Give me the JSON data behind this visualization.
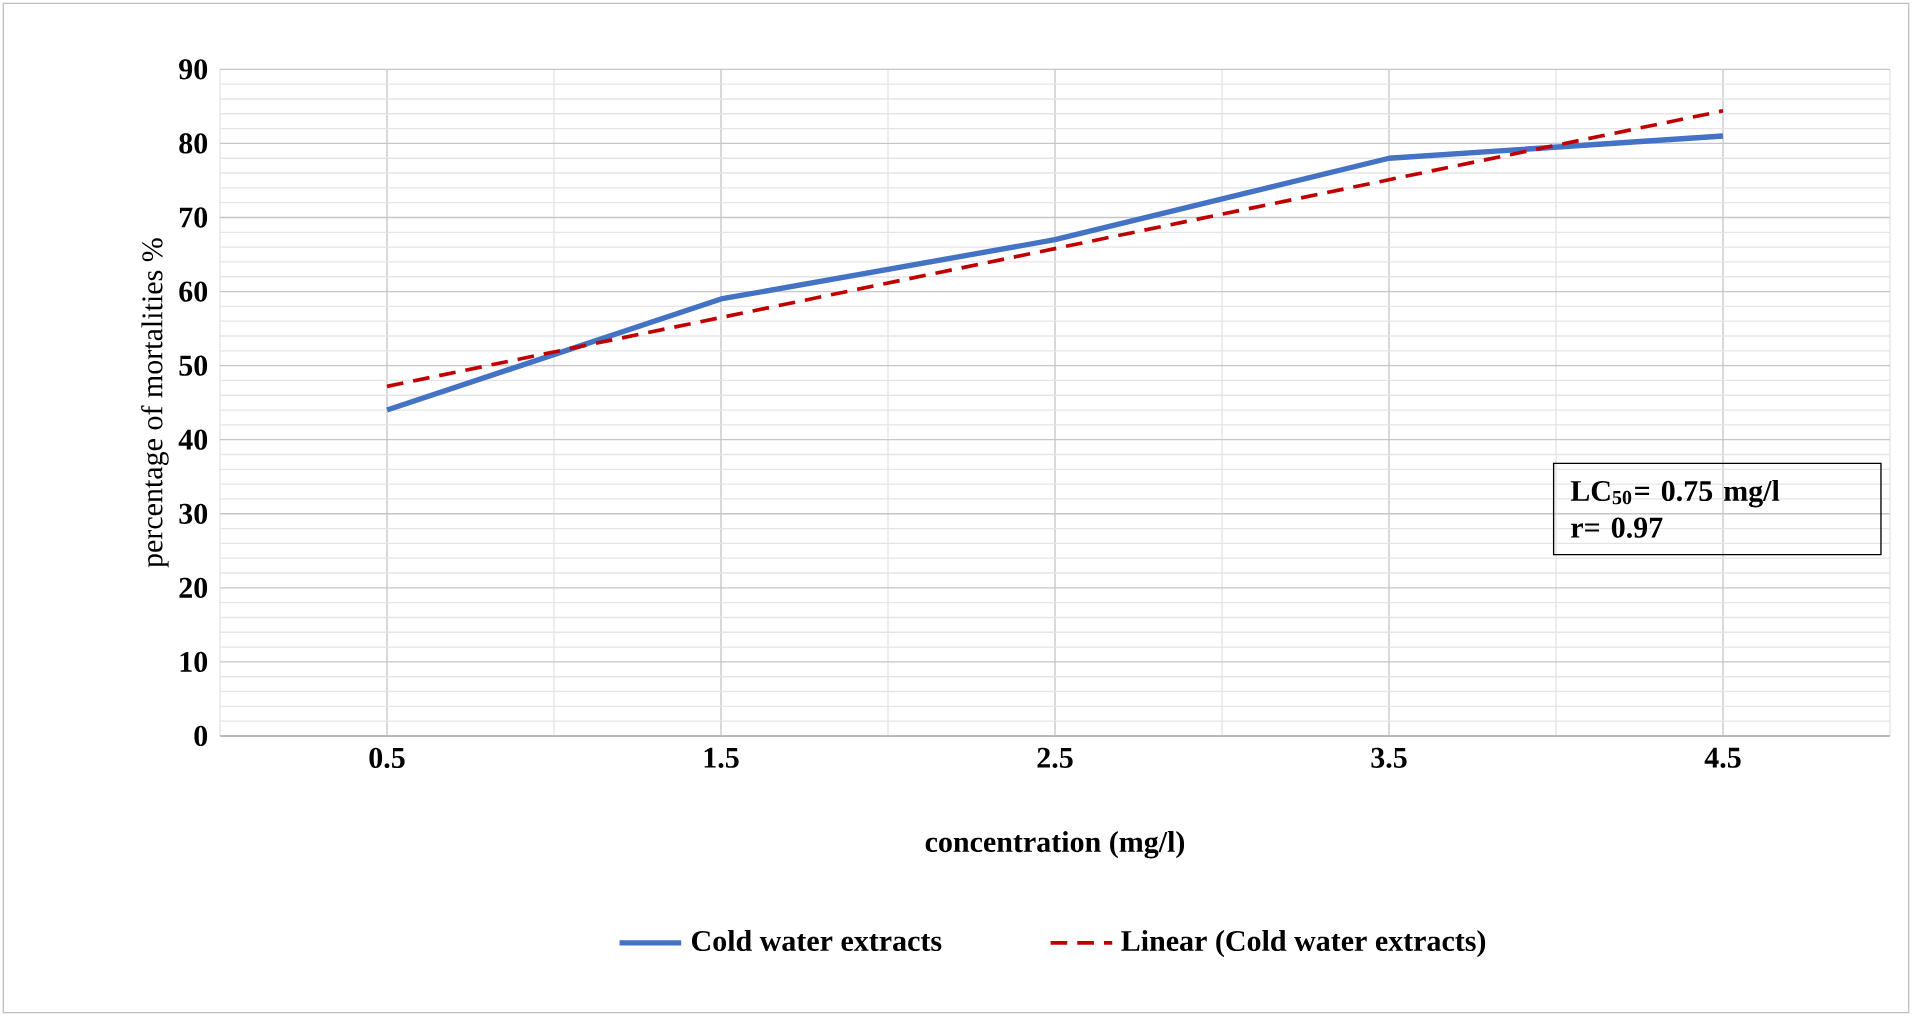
{
  "chart_data": {
    "type": "line",
    "xlabel": "concentration (mg/l)",
    "ylabel": "percentage of mortalities %",
    "categories": [
      "0.5",
      "1.5",
      "2.5",
      "3.5",
      "4.5"
    ],
    "series": [
      {
        "name": "Cold water extracts",
        "color": "#4472c4",
        "values": [
          44,
          59,
          67,
          78,
          81
        ],
        "line_style": "solid"
      },
      {
        "name": "Linear (Cold water extracts)",
        "color": "#c00000",
        "values": [
          47.2,
          56.5,
          65.8,
          75.1,
          84.4
        ],
        "line_style": "dashed"
      }
    ],
    "ylim": [
      0,
      90
    ],
    "yticks": [
      0,
      10,
      20,
      30,
      40,
      50,
      60,
      70,
      80,
      90
    ],
    "grid": true,
    "legend": "bottom",
    "marker": "none",
    "annotations": [
      "LC$_{50}$= 0.75 mg/l",
      "r= 0.97"
    ]
  }
}
